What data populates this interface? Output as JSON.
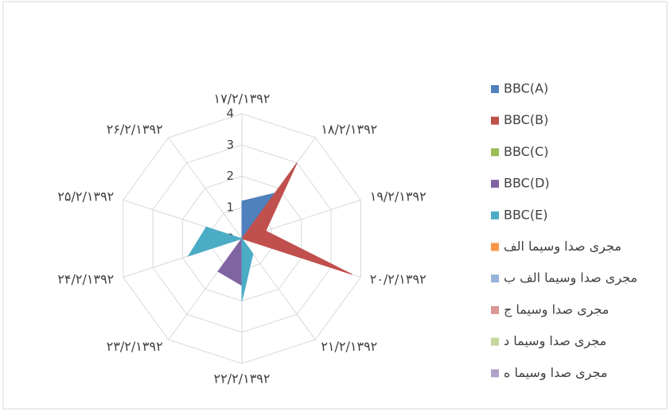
{
  "chart_data": {
    "type": "radar",
    "categories": [
      "۱۷/۲/۱۳۹۲",
      "۱۸/۲/۱۳۹۲",
      "۱۹/۲/۱۳۹۲",
      "۲۰/۲/۱۳۹۲",
      "۲۱/۲/۱۳۹۲",
      "۲۲/۲/۱۳۹۲",
      "۲۳/۲/۱۳۹۲",
      "۲۴/۲/۱۳۹۲",
      "۲۵/۲/۱۳۹۲",
      "۲۶/۲/۱۳۹۲"
    ],
    "ylim": [
      0,
      4
    ],
    "yticks": [
      0,
      1,
      2,
      3,
      4
    ],
    "grid": true,
    "series": [
      {
        "name": "BBC(A)",
        "color": "#4f81bd",
        "values": [
          1.2,
          1.8,
          0,
          0,
          0,
          0,
          0,
          0,
          0,
          0
        ]
      },
      {
        "name": "BBC(B)",
        "color": "#c0504d",
        "values": [
          0,
          3,
          0.8,
          3.7,
          0,
          0,
          0,
          0,
          0,
          0
        ]
      },
      {
        "name": "BBC(C)",
        "color": "#9bbb59",
        "values": [
          0,
          0,
          0,
          0,
          0,
          0,
          0,
          0,
          0,
          0
        ]
      },
      {
        "name": "BBC(D)",
        "color": "#8064a2",
        "values": [
          0,
          0,
          0,
          0,
          0.5,
          1.5,
          1.3,
          0,
          0,
          0
        ]
      },
      {
        "name": "BBC(E)",
        "color": "#4bacc6",
        "values": [
          0,
          0,
          0,
          0,
          0.6,
          2,
          0,
          1.8,
          1.2,
          0
        ]
      },
      {
        "name": "مجری صدا وسیما الف",
        "color": "#f79646",
        "values": [
          0,
          0,
          0,
          0,
          0,
          0,
          0,
          0,
          0,
          0
        ]
      },
      {
        "name": "مجری صدا وسیما الف ب",
        "color": "#95b3d7",
        "values": [
          0,
          0,
          0,
          0,
          0,
          0,
          0,
          0,
          0,
          0
        ]
      },
      {
        "name": "مجری صدا وسیما ج",
        "color": "#d99694",
        "values": [
          0,
          0,
          0,
          0,
          0,
          0,
          0,
          0,
          0,
          0
        ]
      },
      {
        "name": "مجری صدا وسیما د",
        "color": "#c3d69b",
        "values": [
          0,
          0,
          0,
          0,
          0,
          0,
          0,
          0,
          0,
          0
        ]
      },
      {
        "name": "مجری صدا وسیما ه",
        "color": "#b3a2c7",
        "values": [
          0,
          0,
          0,
          0,
          0,
          0,
          0,
          0,
          0,
          0
        ]
      }
    ]
  }
}
